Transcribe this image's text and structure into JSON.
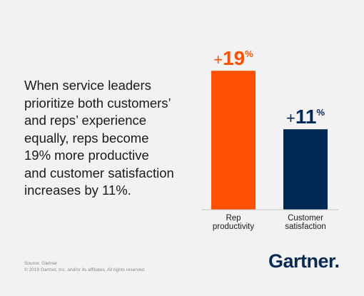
{
  "headline": {
    "lines": [
      "When service leaders",
      "prioritize both customers’",
      "and reps’ experience",
      "equally, reps become",
      "19% more productive",
      "and customer satisfaction",
      "increases by 11%."
    ]
  },
  "chart_data": {
    "type": "bar",
    "categories": [
      "Rep productivity",
      "Customer satisfaction"
    ],
    "category_lines": [
      [
        "Rep",
        "productivity"
      ],
      [
        "Customer",
        "satisfaction"
      ]
    ],
    "values": [
      19,
      11
    ],
    "data_labels": [
      {
        "sign": "+",
        "number": "19",
        "unit": "%"
      },
      {
        "sign": "+",
        "number": "11",
        "unit": "%"
      }
    ],
    "colors": [
      "#fe5000",
      "#002856"
    ],
    "ylim": [
      0,
      19.9
    ],
    "grid": false,
    "legend": "none",
    "title": "",
    "xlabel": "",
    "ylabel": ""
  },
  "footer": {
    "source": "Source: Gartner",
    "copyright": "© 2019 Gartner, Inc. and/or its affiliates. All rights reserved."
  },
  "logo": {
    "text": "Gartner",
    "dot": "."
  }
}
